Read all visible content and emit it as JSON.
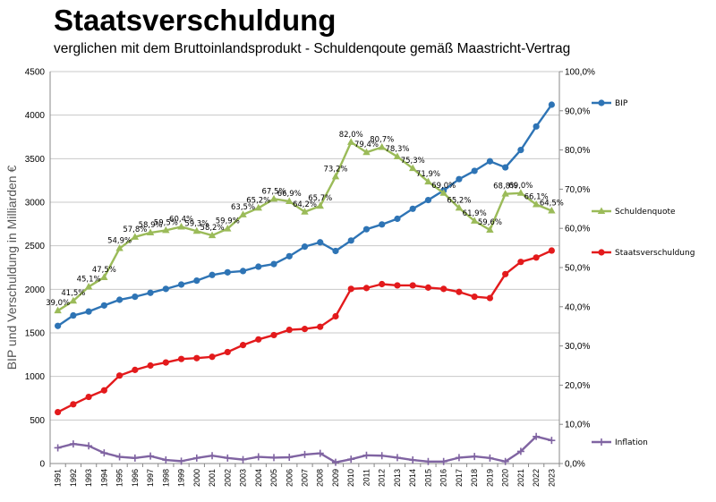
{
  "chart_data": {
    "type": "line",
    "title": "Staatsverschuldung",
    "subtitle": "verglichen mit dem Bruttoinlandsprodukt - Schuldenqoute gemäß Maastricht-Vertrag",
    "ylabel": "BIP und Verschuldung in Milliarden €",
    "ylim": [
      0,
      4500
    ],
    "yticks": [
      "0",
      "500",
      "1000",
      "1500",
      "2000",
      "2500",
      "3000",
      "3500",
      "4000",
      "4500"
    ],
    "y2lim": [
      0,
      100
    ],
    "y2ticks": [
      "0,0%",
      "10,0%",
      "20,0%",
      "30,0%",
      "40,0%",
      "50,0%",
      "60,0%",
      "70,0%",
      "80,0%",
      "90,0%",
      "100,0%"
    ],
    "categories": [
      "1991",
      "1992",
      "1993",
      "1994",
      "1995",
      "1996",
      "1997",
      "1998",
      "1999",
      "2000",
      "2001",
      "2002",
      "2003",
      "2004",
      "2005",
      "2006",
      "2007",
      "2008",
      "2009",
      "2010",
      "2011",
      "2012",
      "2013",
      "2014",
      "2015",
      "2016",
      "2017",
      "2018",
      "2019",
      "2020",
      "2021",
      "2022",
      "2023"
    ],
    "series": [
      {
        "name": "BIP",
        "axis": "left",
        "color": "#2e74b5",
        "marker": "circle",
        "values": [
          1580,
          1700,
          1745,
          1815,
          1880,
          1915,
          1960,
          2005,
          2055,
          2100,
          2165,
          2195,
          2210,
          2260,
          2290,
          2380,
          2490,
          2540,
          2440,
          2560,
          2690,
          2745,
          2810,
          2925,
          3025,
          3135,
          3265,
          3360,
          3470,
          3400,
          3600,
          3870,
          4120
        ]
      },
      {
        "name": "Schuldenquote",
        "axis": "right",
        "color": "#9bbb59",
        "marker": "triangle",
        "values": [
          39.0,
          41.5,
          45.1,
          47.5,
          54.9,
          57.8,
          58.9,
          59.5,
          60.4,
          59.3,
          58.2,
          59.9,
          63.5,
          65.2,
          67.5,
          66.9,
          64.2,
          65.7,
          73.2,
          82.0,
          79.4,
          80.7,
          78.3,
          75.3,
          71.9,
          69.0,
          65.2,
          61.9,
          59.6,
          68.8,
          69.0,
          66.1,
          64.5
        ],
        "labels": [
          "39,0%",
          "41,5%",
          "45,1%",
          "47,5%",
          "54,9%",
          "57,8%",
          "58,9%",
          "59,5%",
          "60,4%",
          "59,3%",
          "58,2%",
          "59,9%",
          "63,5%",
          "65,2%",
          "67,5%",
          "66,9%",
          "64,2%",
          "65,7%",
          "73,2%",
          "82,0%",
          "79,4%",
          "80,7%",
          "78,3%",
          "75,3%",
          "71,9%",
          "69,0%",
          "65,2%",
          "61,9%",
          "59,6%",
          "68,8%",
          "69,0%",
          "66,1%",
          "64,5%"
        ]
      },
      {
        "name": "Staatsverschuldung",
        "axis": "left",
        "color": "#e31a1c",
        "marker": "circle",
        "values": [
          590,
          680,
          765,
          840,
          1010,
          1075,
          1125,
          1160,
          1200,
          1210,
          1225,
          1280,
          1360,
          1425,
          1475,
          1535,
          1545,
          1570,
          1690,
          2005,
          2015,
          2060,
          2045,
          2045,
          2020,
          2005,
          1970,
          1915,
          1900,
          2175,
          2315,
          2365,
          2445
        ]
      },
      {
        "name": "Inflation",
        "axis": "right",
        "color": "#8064a2",
        "marker": "cross",
        "values": [
          4.0,
          5.0,
          4.5,
          2.7,
          1.7,
          1.4,
          1.9,
          0.9,
          0.6,
          1.4,
          2.0,
          1.4,
          1.0,
          1.7,
          1.5,
          1.6,
          2.3,
          2.6,
          0.3,
          1.1,
          2.1,
          2.0,
          1.5,
          0.9,
          0.5,
          0.5,
          1.5,
          1.8,
          1.4,
          0.5,
          3.1,
          6.9,
          5.9
        ]
      }
    ],
    "legend": [
      "BIP",
      "Schuldenquote",
      "Staatsverschuldung",
      "Inflation"
    ],
    "grid": true
  }
}
